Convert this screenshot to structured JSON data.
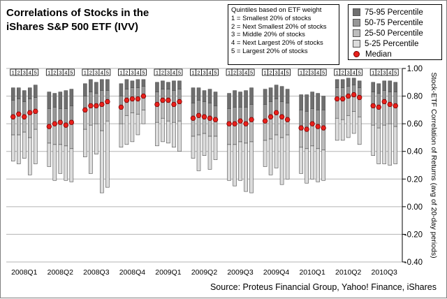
{
  "title_lines": [
    "Correlations of Stocks in the",
    "iShares S&P 500 ETF (IVV)"
  ],
  "quintile_notes": {
    "heading": "Quintiles based on ETF weight",
    "items": [
      "1 = Smallest 20% of stocks",
      "2 = Next Smallest 20% of stocks",
      "3 = Middle 20% of stocks",
      "4 = Next Largest 20% of stocks",
      "5 = Largest 20% of stocks"
    ]
  },
  "legend": [
    {
      "label": "75-95 Percentile",
      "color": "#6f6f6f",
      "kind": "box"
    },
    {
      "label": "50-75 Percentile",
      "color": "#979797",
      "kind": "box"
    },
    {
      "label": "25-50 Percentile",
      "color": "#bdbdbd",
      "kind": "box"
    },
    {
      "label": "5-25 Percentile",
      "color": "#dcdcdc",
      "kind": "box"
    },
    {
      "label": "Median",
      "color": "#e8201b",
      "kind": "dot"
    }
  ],
  "source": "Source: Proteus Financial Group, Yahoo! Finance, iShares",
  "chart_data": {
    "type": "floating-stacked-bar",
    "ylabel": "Stock-ETF Correlation of Returns (avg of 20-day periods)",
    "ylim": [
      -0.4,
      1.0
    ],
    "yticks": [
      "1.00",
      "0.80",
      "0.60",
      "0.40",
      "0.20",
      "0.00",
      "-0.20",
      "-0.40"
    ],
    "grid": true,
    "quintile_labels": [
      "1",
      "2",
      "3",
      "4",
      "5"
    ],
    "colors": {
      "p75_95": "#6f6f6f",
      "p50_75": "#979797",
      "p25_50": "#bdbdbd",
      "p5_25": "#dcdcdc",
      "median": "#e8201b"
    },
    "periods": [
      {
        "label": "2008Q1",
        "bars": [
          {
            "p5": 0.33,
            "p25": 0.52,
            "p50": 0.65,
            "p75": 0.77,
            "p95": 0.86
          },
          {
            "p5": 0.31,
            "p25": 0.52,
            "p50": 0.67,
            "p75": 0.78,
            "p95": 0.86
          },
          {
            "p5": 0.35,
            "p25": 0.54,
            "p50": 0.65,
            "p75": 0.76,
            "p95": 0.84
          },
          {
            "p5": 0.23,
            "p25": 0.5,
            "p50": 0.68,
            "p75": 0.78,
            "p95": 0.86
          },
          {
            "p5": 0.31,
            "p25": 0.56,
            "p50": 0.69,
            "p75": 0.79,
            "p95": 0.88
          }
        ]
      },
      {
        "label": "2008Q2",
        "bars": [
          {
            "p5": 0.29,
            "p25": 0.46,
            "p50": 0.58,
            "p75": 0.71,
            "p95": 0.83
          },
          {
            "p5": 0.19,
            "p25": 0.45,
            "p50": 0.6,
            "p75": 0.72,
            "p95": 0.82
          },
          {
            "p5": 0.24,
            "p25": 0.45,
            "p50": 0.61,
            "p75": 0.71,
            "p95": 0.83
          },
          {
            "p5": 0.19,
            "p25": 0.44,
            "p50": 0.59,
            "p75": 0.71,
            "p95": 0.84
          },
          {
            "p5": 0.18,
            "p25": 0.42,
            "p50": 0.61,
            "p75": 0.73,
            "p95": 0.85
          }
        ]
      },
      {
        "label": "2008Q3",
        "bars": [
          {
            "p5": 0.36,
            "p25": 0.56,
            "p50": 0.7,
            "p75": 0.8,
            "p95": 0.89
          },
          {
            "p5": 0.24,
            "p25": 0.59,
            "p50": 0.73,
            "p75": 0.83,
            "p95": 0.92
          },
          {
            "p5": 0.38,
            "p25": 0.6,
            "p50": 0.73,
            "p75": 0.82,
            "p95": 0.9
          },
          {
            "p5": 0.1,
            "p25": 0.55,
            "p50": 0.74,
            "p75": 0.84,
            "p95": 0.92
          },
          {
            "p5": 0.14,
            "p25": 0.62,
            "p50": 0.76,
            "p75": 0.84,
            "p95": 0.92
          }
        ]
      },
      {
        "label": "2008Q4",
        "bars": [
          {
            "p5": 0.43,
            "p25": 0.6,
            "p50": 0.72,
            "p75": 0.8,
            "p95": 0.89
          },
          {
            "p5": 0.45,
            "p25": 0.66,
            "p50": 0.77,
            "p75": 0.85,
            "p95": 0.92
          },
          {
            "p5": 0.47,
            "p25": 0.68,
            "p50": 0.78,
            "p75": 0.86,
            "p95": 0.91
          },
          {
            "p5": 0.52,
            "p25": 0.67,
            "p50": 0.78,
            "p75": 0.86,
            "p95": 0.92
          },
          {
            "p5": 0.6,
            "p25": 0.7,
            "p50": 0.8,
            "p75": 0.87,
            "p95": 0.92
          }
        ]
      },
      {
        "label": "2009Q1",
        "bars": [
          {
            "p5": 0.44,
            "p25": 0.61,
            "p50": 0.74,
            "p75": 0.83,
            "p95": 0.9
          },
          {
            "p5": 0.47,
            "p25": 0.64,
            "p50": 0.77,
            "p75": 0.85,
            "p95": 0.91
          },
          {
            "p5": 0.46,
            "p25": 0.62,
            "p50": 0.77,
            "p75": 0.85,
            "p95": 0.9
          },
          {
            "p5": 0.43,
            "p25": 0.61,
            "p50": 0.74,
            "p75": 0.84,
            "p95": 0.91
          },
          {
            "p5": 0.4,
            "p25": 0.62,
            "p50": 0.76,
            "p75": 0.85,
            "p95": 0.91
          }
        ]
      },
      {
        "label": "2009Q2",
        "bars": [
          {
            "p5": 0.35,
            "p25": 0.51,
            "p50": 0.64,
            "p75": 0.75,
            "p95": 0.86
          },
          {
            "p5": 0.26,
            "p25": 0.52,
            "p50": 0.66,
            "p75": 0.77,
            "p95": 0.86
          },
          {
            "p5": 0.37,
            "p25": 0.53,
            "p50": 0.65,
            "p75": 0.76,
            "p95": 0.84
          },
          {
            "p5": 0.27,
            "p25": 0.51,
            "p50": 0.64,
            "p75": 0.75,
            "p95": 0.85
          },
          {
            "p5": 0.34,
            "p25": 0.51,
            "p50": 0.63,
            "p75": 0.73,
            "p95": 0.83
          }
        ]
      },
      {
        "label": "2009Q3",
        "bars": [
          {
            "p5": 0.19,
            "p25": 0.45,
            "p50": 0.6,
            "p75": 0.71,
            "p95": 0.82
          },
          {
            "p5": 0.15,
            "p25": 0.45,
            "p50": 0.6,
            "p75": 0.72,
            "p95": 0.84
          },
          {
            "p5": 0.19,
            "p25": 0.47,
            "p50": 0.62,
            "p75": 0.72,
            "p95": 0.83
          },
          {
            "p5": 0.11,
            "p25": 0.46,
            "p50": 0.6,
            "p75": 0.72,
            "p95": 0.84
          },
          {
            "p5": 0.1,
            "p25": 0.47,
            "p50": 0.63,
            "p75": 0.74,
            "p95": 0.86
          }
        ]
      },
      {
        "label": "2009Q4",
        "bars": [
          {
            "p5": 0.29,
            "p25": 0.48,
            "p50": 0.62,
            "p75": 0.74,
            "p95": 0.85
          },
          {
            "p5": 0.23,
            "p25": 0.49,
            "p50": 0.65,
            "p75": 0.76,
            "p95": 0.86
          },
          {
            "p5": 0.28,
            "p25": 0.52,
            "p50": 0.68,
            "p75": 0.78,
            "p95": 0.88
          },
          {
            "p5": 0.16,
            "p25": 0.5,
            "p50": 0.65,
            "p75": 0.76,
            "p95": 0.87
          },
          {
            "p5": 0.2,
            "p25": 0.52,
            "p50": 0.63,
            "p75": 0.75,
            "p95": 0.85
          }
        ]
      },
      {
        "label": "2010Q1",
        "bars": [
          {
            "p5": 0.24,
            "p25": 0.43,
            "p50": 0.57,
            "p75": 0.7,
            "p95": 0.81
          },
          {
            "p5": 0.17,
            "p25": 0.42,
            "p50": 0.56,
            "p75": 0.69,
            "p95": 0.81
          },
          {
            "p5": 0.2,
            "p25": 0.44,
            "p50": 0.6,
            "p75": 0.71,
            "p95": 0.83
          },
          {
            "p5": 0.18,
            "p25": 0.42,
            "p50": 0.58,
            "p75": 0.7,
            "p95": 0.82
          },
          {
            "p5": 0.19,
            "p25": 0.41,
            "p50": 0.57,
            "p75": 0.7,
            "p95": 0.8
          }
        ]
      },
      {
        "label": "2010Q2",
        "bars": [
          {
            "p5": 0.48,
            "p25": 0.64,
            "p50": 0.78,
            "p75": 0.86,
            "p95": 0.92
          },
          {
            "p5": 0.48,
            "p25": 0.63,
            "p50": 0.78,
            "p75": 0.86,
            "p95": 0.92
          },
          {
            "p5": 0.5,
            "p25": 0.66,
            "p50": 0.8,
            "p75": 0.87,
            "p95": 0.93
          },
          {
            "p5": 0.53,
            "p25": 0.69,
            "p50": 0.81,
            "p75": 0.88,
            "p95": 0.93
          },
          {
            "p5": 0.45,
            "p25": 0.65,
            "p50": 0.79,
            "p75": 0.86,
            "p95": 0.91
          }
        ]
      },
      {
        "label": "2010Q3",
        "bars": [
          {
            "p5": 0.37,
            "p25": 0.59,
            "p50": 0.73,
            "p75": 0.83,
            "p95": 0.9
          },
          {
            "p5": 0.31,
            "p25": 0.57,
            "p50": 0.72,
            "p75": 0.82,
            "p95": 0.89
          },
          {
            "p5": 0.31,
            "p25": 0.59,
            "p50": 0.76,
            "p75": 0.84,
            "p95": 0.91
          },
          {
            "p5": 0.3,
            "p25": 0.6,
            "p50": 0.74,
            "p75": 0.83,
            "p95": 0.91
          },
          {
            "p5": 0.31,
            "p25": 0.58,
            "p50": 0.73,
            "p75": 0.83,
            "p95": 0.9
          }
        ]
      }
    ]
  }
}
